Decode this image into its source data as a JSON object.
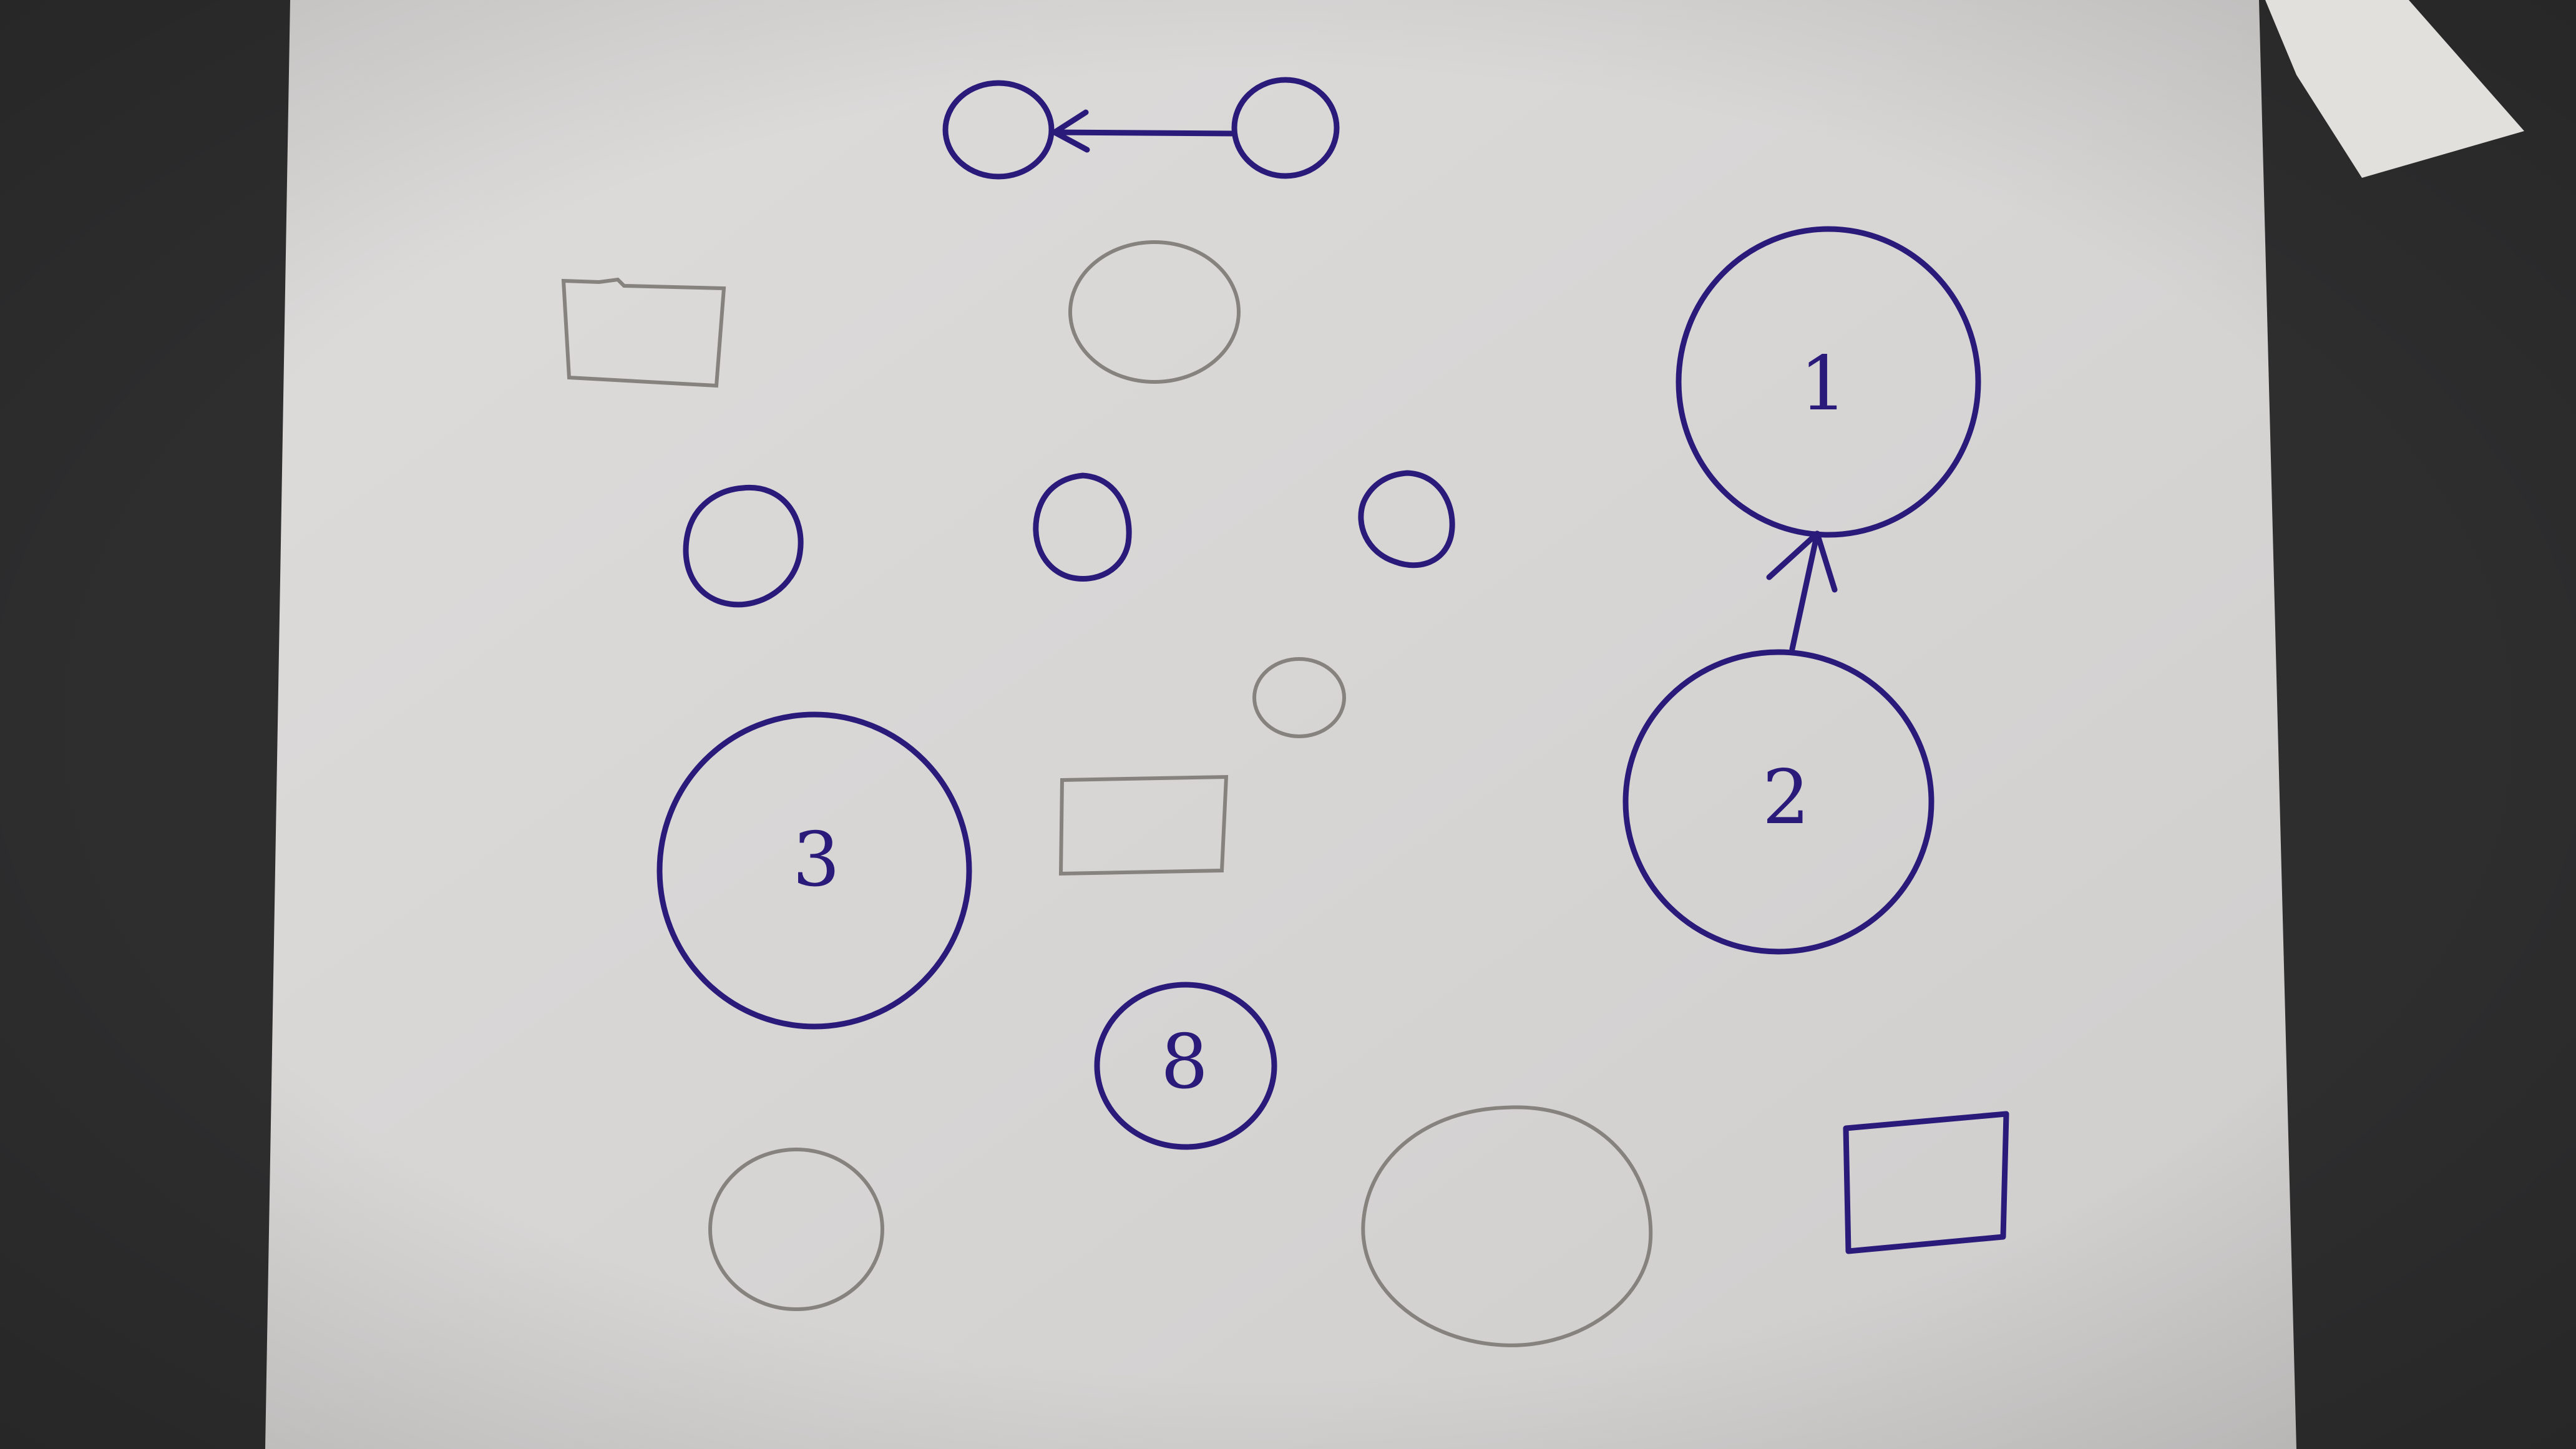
{
  "photo": {
    "background_color": "#2e2e2f",
    "paper_color": "#d9d7d6",
    "ink_color": "#2a1a7a",
    "pencil_color": "#7a7876",
    "tape_color": "#e2e0dc"
  },
  "labels": {
    "node_1": "1",
    "node_2": "2",
    "node_3": "3",
    "node_8": "8"
  }
}
